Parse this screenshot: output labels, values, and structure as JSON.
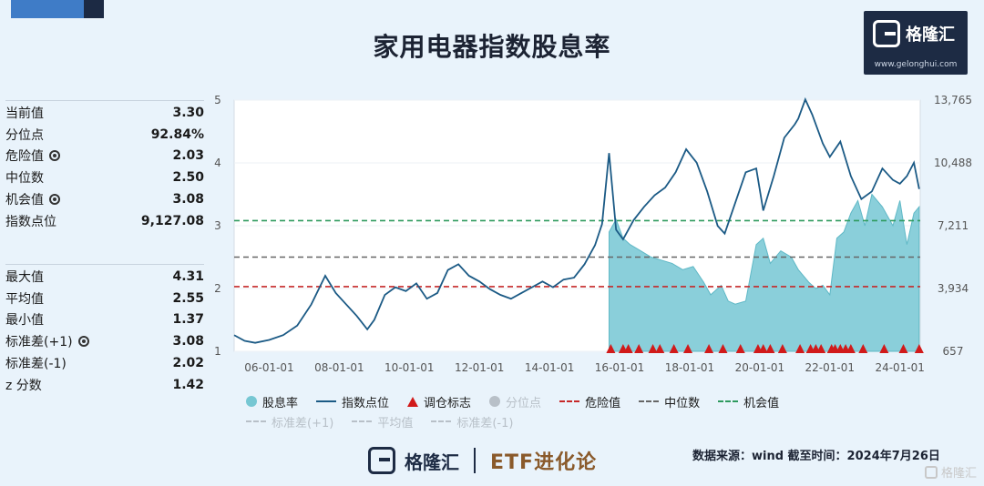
{
  "title": "家用电器指数股息率",
  "brand": {
    "name": "格隆汇",
    "url": "www.gelonghui.com"
  },
  "stats_top": [
    {
      "label": "当前值",
      "value": "3.30",
      "gear": false
    },
    {
      "label": "分位点",
      "value": "92.84%",
      "gear": false
    },
    {
      "label": "危险值",
      "value": "2.03",
      "gear": true
    },
    {
      "label": "中位数",
      "value": "2.50",
      "gear": false
    },
    {
      "label": "机会值",
      "value": "3.08",
      "gear": true
    },
    {
      "label": "指数点位",
      "value": "9,127.08",
      "gear": false
    }
  ],
  "stats_bottom": [
    {
      "label": "最大值",
      "value": "4.31",
      "gear": false
    },
    {
      "label": "平均值",
      "value": "2.55",
      "gear": false
    },
    {
      "label": "最小值",
      "value": "1.37",
      "gear": false
    },
    {
      "label": "标准差(+1)",
      "value": "3.08",
      "gear": true
    },
    {
      "label": "标准差(-1)",
      "value": "2.02",
      "gear": false
    },
    {
      "label": "z 分数",
      "value": "1.42",
      "gear": false
    }
  ],
  "legend_row1": [
    {
      "label": "股息率",
      "kind": "dot",
      "color": "#76c7d3"
    },
    {
      "label": "指数点位",
      "kind": "line",
      "color": "#1b5a85"
    },
    {
      "label": "调仓标志",
      "kind": "tri",
      "color": "#d11a1a"
    },
    {
      "label": "分位点",
      "kind": "dot",
      "color": "#b8c0c8"
    },
    {
      "label": "危险值",
      "kind": "dash",
      "color": "#c62828"
    },
    {
      "label": "中位数",
      "kind": "dash",
      "color": "#666666"
    },
    {
      "label": "机会值",
      "kind": "dash",
      "color": "#2e9a5e"
    }
  ],
  "legend_row2": [
    {
      "label": "标准差(+1)",
      "kind": "dash",
      "color": "#b8c0c8"
    },
    {
      "label": "平均值",
      "kind": "dash",
      "color": "#b8c0c8"
    },
    {
      "label": "标准差(-1)",
      "kind": "dash",
      "color": "#b8c0c8"
    }
  ],
  "footer": {
    "etf_label": "ETF进化论",
    "source": "数据来源：wind 截至时间：2024年7月26日"
  },
  "chart_data": {
    "type": "line",
    "x_axis": {
      "ticks": [
        "06-01-01",
        "08-01-01",
        "10-01-01",
        "12-01-01",
        "14-01-01",
        "16-01-01",
        "18-01-01",
        "20-01-01",
        "22-01-01",
        "24-01-01"
      ],
      "range": [
        2005.0,
        2024.58
      ]
    },
    "y_left": {
      "ticks": [
        "1",
        "2",
        "3",
        "4",
        "5"
      ],
      "range": [
        1,
        5
      ],
      "label": ""
    },
    "y_right": {
      "ticks": [
        "657",
        "3,934",
        "7,211",
        "10,488",
        "13,765"
      ],
      "range": [
        657,
        13765
      ],
      "label": ""
    },
    "reference_lines": [
      {
        "name": "机会值",
        "value": 3.08,
        "color": "#2e9a5e"
      },
      {
        "name": "中位数",
        "value": 2.5,
        "color": "#666666"
      },
      {
        "name": "危险值",
        "value": 2.03,
        "color": "#c62828"
      }
    ],
    "index_series": {
      "name": "指数点位",
      "color": "#1b5a85",
      "x": [
        2005.0,
        2005.3,
        2005.6,
        2006.0,
        2006.4,
        2006.8,
        2007.2,
        2007.6,
        2007.9,
        2008.2,
        2008.5,
        2008.8,
        2009.0,
        2009.3,
        2009.6,
        2009.9,
        2010.2,
        2010.5,
        2010.8,
        2011.1,
        2011.4,
        2011.7,
        2012.0,
        2012.3,
        2012.6,
        2012.9,
        2013.2,
        2013.5,
        2013.8,
        2014.1,
        2014.4,
        2014.7,
        2015.0,
        2015.3,
        2015.5,
        2015.7,
        2015.9,
        2016.1,
        2016.4,
        2016.7,
        2017.0,
        2017.3,
        2017.6,
        2017.9,
        2018.2,
        2018.5,
        2018.8,
        2019.0,
        2019.3,
        2019.6,
        2019.9,
        2020.1,
        2020.4,
        2020.7,
        2021.0,
        2021.1,
        2021.3,
        2021.5,
        2021.8,
        2022.0,
        2022.3,
        2022.6,
        2022.9,
        2023.2,
        2023.5,
        2023.8,
        2024.0,
        2024.2,
        2024.4,
        2024.55
      ],
      "values": [
        1500,
        1200,
        1100,
        1250,
        1500,
        2000,
        3100,
        4600,
        3700,
        3100,
        2500,
        1800,
        2300,
        3600,
        4000,
        3800,
        4200,
        3400,
        3700,
        4900,
        5200,
        4600,
        4300,
        3900,
        3600,
        3400,
        3700,
        4000,
        4300,
        4000,
        4400,
        4500,
        5200,
        6200,
        7300,
        11000,
        7000,
        6500,
        7500,
        8200,
        8800,
        9200,
        10000,
        11200,
        10500,
        9000,
        7200,
        6800,
        8400,
        10000,
        10200,
        8000,
        9800,
        11800,
        12500,
        12800,
        13800,
        13000,
        11500,
        10800,
        11600,
        9800,
        8600,
        9000,
        10200,
        9600,
        9400,
        9800,
        10500,
        9127
      ]
    },
    "dividend_series": {
      "name": "股息率",
      "color": "#76c7d3",
      "x": [
        2015.7,
        2015.9,
        2016.1,
        2016.3,
        2016.6,
        2016.9,
        2017.2,
        2017.5,
        2017.8,
        2018.1,
        2018.4,
        2018.6,
        2018.9,
        2019.1,
        2019.3,
        2019.6,
        2019.9,
        2020.1,
        2020.3,
        2020.6,
        2020.9,
        2021.1,
        2021.4,
        2021.6,
        2021.8,
        2022.0,
        2022.2,
        2022.4,
        2022.6,
        2022.8,
        2023.0,
        2023.2,
        2023.5,
        2023.8,
        2024.0,
        2024.2,
        2024.4,
        2024.55
      ],
      "values": [
        2.9,
        3.1,
        2.8,
        2.7,
        2.6,
        2.5,
        2.45,
        2.4,
        2.3,
        2.35,
        2.1,
        1.9,
        2.05,
        1.8,
        1.75,
        1.8,
        2.7,
        2.8,
        2.4,
        2.6,
        2.5,
        2.3,
        2.1,
        2.0,
        2.05,
        1.9,
        2.8,
        2.9,
        3.2,
        3.4,
        3.0,
        3.5,
        3.3,
        3.0,
        3.4,
        2.7,
        3.2,
        3.3
      ]
    },
    "rebalance_markers_x": [
      2015.75,
      2016.1,
      2016.25,
      2016.55,
      2016.95,
      2017.15,
      2017.55,
      2017.95,
      2018.55,
      2018.95,
      2019.45,
      2019.95,
      2020.1,
      2020.3,
      2020.65,
      2021.15,
      2021.45,
      2021.6,
      2021.75,
      2022.05,
      2022.15,
      2022.3,
      2022.45,
      2022.6,
      2022.95,
      2023.55,
      2024.1,
      2024.55
    ]
  }
}
